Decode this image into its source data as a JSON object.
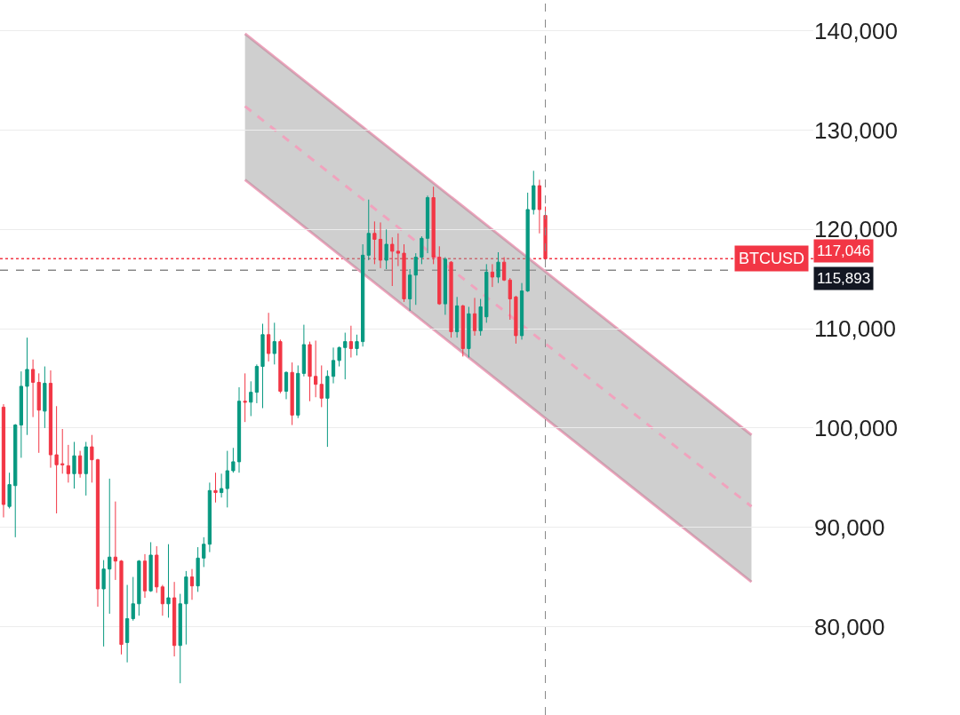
{
  "chart_data": {
    "type": "candlestick",
    "categories": [
      null,
      null,
      null,
      null,
      null,
      null,
      null,
      null,
      null,
      null,
      null,
      null,
      null,
      null,
      null,
      null,
      null,
      null,
      null,
      null,
      null,
      null,
      null,
      null,
      null,
      null,
      null,
      null,
      null,
      null,
      null,
      null,
      null,
      null,
      null,
      null,
      null,
      null,
      null,
      null,
      null,
      null,
      null,
      null,
      null,
      null,
      null,
      null,
      null,
      null,
      null,
      null,
      null,
      null,
      null,
      null,
      null,
      null,
      null,
      null,
      null,
      null,
      null,
      null,
      null,
      null,
      null,
      null,
      null,
      null,
      null,
      null,
      null,
      null,
      null,
      null,
      null,
      null,
      null,
      null,
      null,
      null,
      null,
      null,
      null,
      null,
      null,
      null,
      null,
      null,
      null,
      null,
      null,
      null,
      null,
      null,
      null,
      null,
      null,
      null,
      null,
      null,
      null,
      null,
      null,
      null,
      null,
      null,
      null,
      null,
      null,
      null,
      null,
      null,
      null,
      null,
      null,
      null,
      null,
      null,
      null,
      null,
      null,
      null,
      null,
      null,
      null,
      null
    ],
    "series": [
      {
        "ohlc": [
          [
            102100,
            102400,
            91000,
            92300
          ],
          [
            92100,
            95500,
            91900,
            94300
          ],
          [
            94200,
            100400,
            89000,
            100300
          ],
          [
            100300,
            105700,
            97000,
            104200
          ],
          [
            104200,
            109100,
            99300,
            105900
          ],
          [
            105900,
            106900,
            101100,
            104600
          ],
          [
            104600,
            105500,
            97500,
            101800
          ],
          [
            101700,
            106200,
            100000,
            104500
          ],
          [
            104500,
            105800,
            96000,
            97300
          ],
          [
            97300,
            102200,
            91400,
            96300
          ],
          [
            96400,
            99900,
            95400,
            96300
          ],
          [
            96200,
            98300,
            94500,
            95400
          ],
          [
            95400,
            98600,
            93900,
            97200
          ],
          [
            97200,
            97700,
            95000,
            95400
          ],
          [
            95400,
            98600,
            93200,
            98100
          ],
          [
            98100,
            99300,
            94500,
            96800
          ],
          [
            96800,
            96900,
            82000,
            83800
          ],
          [
            83800,
            86700,
            78000,
            85800
          ],
          [
            85800,
            94900,
            81300,
            87000
          ],
          [
            87000,
            92600,
            84700,
            86600
          ],
          [
            86600,
            86700,
            77200,
            78200
          ],
          [
            78400,
            84200,
            76400,
            80800
          ],
          [
            80800,
            85000,
            80600,
            82300
          ],
          [
            82300,
            86700,
            81100,
            86600
          ],
          [
            86600,
            87300,
            82900,
            83600
          ],
          [
            83600,
            88500,
            83500,
            87200
          ],
          [
            87200,
            88100,
            83400,
            84000
          ],
          [
            84000,
            84200,
            81100,
            82300
          ],
          [
            82300,
            88300,
            80900,
            82900
          ],
          [
            82900,
            84500,
            77000,
            78100
          ],
          [
            78100,
            83300,
            74300,
            82300
          ],
          [
            82300,
            85600,
            78200,
            85000
          ],
          [
            85000,
            85800,
            82700,
            84100
          ],
          [
            84100,
            88000,
            83500,
            86900
          ],
          [
            86900,
            89000,
            86000,
            88300
          ],
          [
            88300,
            94500,
            87500,
            93700
          ],
          [
            93700,
            95500,
            92500,
            93500
          ],
          [
            93500,
            95400,
            93000,
            93900
          ],
          [
            93900,
            97700,
            92000,
            95700
          ],
          [
            95700,
            98000,
            95500,
            96600
          ],
          [
            96600,
            104100,
            95500,
            102700
          ],
          [
            102700,
            105500,
            100600,
            102600
          ],
          [
            102600,
            104700,
            101200,
            103600
          ],
          [
            103600,
            106400,
            102500,
            106200
          ],
          [
            106200,
            110500,
            102000,
            109400
          ],
          [
            109400,
            111600,
            106700,
            107500
          ],
          [
            107500,
            110600,
            106400,
            108700
          ],
          [
            108700,
            108900,
            103500,
            103700
          ],
          [
            103700,
            105700,
            102900,
            105600
          ],
          [
            105600,
            106600,
            100300,
            101300
          ],
          [
            101300,
            106300,
            101000,
            105500
          ],
          [
            105500,
            110400,
            105200,
            108400
          ],
          [
            108400,
            108700,
            102700,
            105200
          ],
          [
            105200,
            108800,
            103100,
            104400
          ],
          [
            104400,
            106300,
            102100,
            103000
          ],
          [
            103000,
            105800,
            98100,
            105200
          ],
          [
            105200,
            108100,
            104500,
            106800
          ],
          [
            106800,
            108200,
            106200,
            108100
          ],
          [
            108100,
            109600,
            104900,
            108700
          ],
          [
            108700,
            110300,
            107100,
            108000
          ],
          [
            108000,
            109400,
            107300,
            108700
          ],
          [
            108700,
            118500,
            108200,
            117400
          ],
          [
            117400,
            123000,
            116900,
            119600
          ],
          [
            119600,
            120800,
            116500,
            119000
          ],
          [
            119000,
            120700,
            116100,
            116900
          ],
          [
            116900,
            120000,
            116000,
            118500
          ],
          [
            118500,
            119200,
            114300,
            117800
          ],
          [
            117800,
            119600,
            116300,
            117600
          ],
          [
            117600,
            118500,
            112700,
            113000
          ],
          [
            113000,
            116000,
            111800,
            115400
          ],
          [
            115400,
            117600,
            112400,
            117200
          ],
          [
            117200,
            119300,
            116500,
            119100
          ],
          [
            119100,
            123400,
            117600,
            123200
          ],
          [
            123200,
            124300,
            116500,
            117200
          ],
          [
            117200,
            118300,
            112400,
            112500
          ],
          [
            112500,
            117200,
            111400,
            117000
          ],
          [
            116700,
            116800,
            109100,
            109700
          ],
          [
            109700,
            113200,
            109100,
            112300
          ],
          [
            112300,
            112400,
            107200,
            108000
          ],
          [
            108000,
            112200,
            107100,
            111500
          ],
          [
            111500,
            113100,
            109300,
            109800
          ],
          [
            109800,
            113000,
            109300,
            112200
          ],
          [
            111200,
            116500,
            110600,
            115700
          ],
          [
            115700,
            116500,
            114200,
            115200
          ],
          [
            115200,
            117700,
            114600,
            116700
          ],
          [
            116700,
            117200,
            114800,
            114900
          ],
          [
            114900,
            115100,
            110900,
            113000
          ],
          [
            113200,
            113300,
            108500,
            109300
          ],
          [
            109300,
            114600,
            108900,
            113800
          ],
          [
            113800,
            123700,
            113700,
            122000
          ],
          [
            122000,
            125900,
            121500,
            124400
          ],
          [
            124400,
            125000,
            119600,
            122000
          ],
          [
            121400,
            122300,
            116900,
            117046
          ],
          null,
          null,
          null,
          null,
          null,
          null,
          null,
          null,
          null,
          null,
          null,
          null,
          null,
          null,
          null,
          null,
          null,
          null,
          null,
          null,
          null,
          null,
          null,
          null,
          null,
          null,
          null,
          null,
          null,
          null,
          null,
          null,
          null,
          null,
          null
        ],
        "colors": [
          "#f23645",
          "#089981",
          "#089981",
          "#089981",
          "#089981",
          "#f23645",
          "#f23645",
          "#089981",
          "#f23645",
          "#f23645",
          "#f23645",
          "#f23645",
          "#089981",
          "#f23645",
          "#089981",
          "#f23645",
          "#f23645",
          "#089981",
          "#089981",
          "#f23645",
          "#f23645",
          "#089981",
          "#089981",
          "#089981",
          "#f23645",
          "#089981",
          "#f23645",
          "#f23645",
          "#089981",
          "#f23645",
          "#089981",
          "#089981",
          "#f23645",
          "#089981",
          "#089981",
          "#089981",
          "#f23645",
          "#089981",
          "#089981",
          "#089981",
          "#089981",
          "#f23645",
          "#089981",
          "#089981",
          "#089981",
          "#f23645",
          "#089981",
          "#f23645",
          "#089981",
          "#f23645",
          "#089981",
          "#089981",
          "#f23645",
          "#f23645",
          "#f23645",
          "#089981",
          "#089981",
          "#089981",
          "#089981",
          "#f23645",
          "#089981",
          "#089981",
          "#089981",
          "#f23645",
          "#f23645",
          "#089981",
          "#f23645",
          "#f23645",
          "#f23645",
          "#089981",
          "#089981",
          "#089981",
          "#089981",
          "#f23645",
          "#f23645",
          "#089981",
          "#f23645",
          "#089981",
          "#f23645",
          "#089981",
          "#f23645",
          "#089981",
          "#089981",
          "#f23645",
          "#089981",
          "#f23645",
          "#f23645",
          "#f23645",
          "#089981",
          "#089981",
          "#089981",
          "#f23645",
          "#f23645",
          null,
          null,
          null,
          null,
          null,
          null,
          null,
          null,
          null,
          null,
          null,
          null,
          null,
          null,
          null,
          null,
          null,
          null,
          null,
          null,
          null,
          null,
          null,
          null,
          null,
          null,
          null,
          null,
          null,
          null,
          null,
          null,
          null,
          null,
          null
        ]
      },
      {
        "type": "line",
        "color": "#f0a3bd",
        "line_style": "solid",
        "values": [
          null,
          null,
          null,
          null,
          null,
          null,
          null,
          null,
          null,
          null,
          null,
          null,
          null,
          null,
          null,
          null,
          null,
          null,
          null,
          null,
          null,
          null,
          null,
          null,
          null,
          null,
          null,
          null,
          null,
          null,
          null,
          null,
          null,
          null,
          null,
          null,
          null,
          null,
          null,
          null,
          null,
          139700,
          null,
          null,
          null,
          null,
          null,
          null,
          null,
          null,
          null,
          null,
          null,
          null,
          null,
          null,
          null,
          null,
          null,
          null,
          null,
          null,
          null,
          null,
          null,
          null,
          null,
          null,
          null,
          null,
          null,
          null,
          null,
          null,
          null,
          null,
          null,
          null,
          null,
          null,
          null,
          null,
          null,
          null,
          null,
          null,
          null,
          null,
          null,
          null,
          null,
          null,
          null,
          null,
          null,
          null,
          null,
          null,
          null,
          null,
          null,
          null,
          null,
          null,
          null,
          null,
          null,
          null,
          null,
          null,
          null,
          null,
          null,
          null,
          null,
          null,
          null,
          null,
          null,
          null,
          null,
          null,
          null,
          null,
          null,
          null,
          null,
          99300
        ]
      },
      {
        "type": "line",
        "color": "#f0a3bd",
        "line_style": "solid",
        "values": [
          null,
          null,
          null,
          null,
          null,
          null,
          null,
          null,
          null,
          null,
          null,
          null,
          null,
          null,
          null,
          null,
          null,
          null,
          null,
          null,
          null,
          null,
          null,
          null,
          null,
          null,
          null,
          null,
          null,
          null,
          null,
          null,
          null,
          null,
          null,
          null,
          null,
          null,
          null,
          null,
          null,
          125000,
          null,
          null,
          null,
          null,
          null,
          null,
          null,
          null,
          null,
          null,
          null,
          null,
          null,
          null,
          null,
          null,
          null,
          null,
          null,
          null,
          null,
          null,
          null,
          null,
          null,
          null,
          null,
          null,
          null,
          null,
          null,
          null,
          null,
          null,
          null,
          null,
          null,
          null,
          null,
          null,
          null,
          null,
          null,
          null,
          null,
          null,
          null,
          null,
          null,
          null,
          null,
          null,
          null,
          null,
          null,
          null,
          null,
          null,
          null,
          null,
          null,
          null,
          null,
          null,
          null,
          null,
          null,
          null,
          null,
          null,
          null,
          null,
          null,
          null,
          null,
          null,
          null,
          null,
          null,
          null,
          null,
          null,
          null,
          null,
          null,
          84500
        ]
      },
      {
        "type": "line",
        "color": "#f0a3bd",
        "line_style": "dashed",
        "values": [
          null,
          null,
          null,
          null,
          null,
          null,
          null,
          null,
          null,
          null,
          null,
          null,
          null,
          null,
          null,
          null,
          null,
          null,
          null,
          null,
          null,
          null,
          null,
          null,
          null,
          null,
          null,
          null,
          null,
          null,
          null,
          null,
          null,
          null,
          null,
          null,
          null,
          null,
          null,
          null,
          null,
          132400,
          null,
          null,
          null,
          null,
          null,
          null,
          null,
          null,
          null,
          null,
          null,
          null,
          null,
          null,
          null,
          null,
          null,
          null,
          null,
          null,
          null,
          null,
          null,
          null,
          null,
          null,
          null,
          null,
          null,
          null,
          null,
          null,
          null,
          null,
          null,
          null,
          null,
          null,
          null,
          null,
          null,
          null,
          null,
          null,
          null,
          null,
          null,
          null,
          null,
          null,
          null,
          null,
          null,
          null,
          null,
          null,
          null,
          null,
          null,
          null,
          null,
          null,
          null,
          null,
          null,
          null,
          null,
          null,
          null,
          null,
          null,
          null,
          null,
          null,
          null,
          null,
          null,
          null,
          null,
          null,
          null,
          null,
          null,
          null,
          null,
          92100
        ],
        "lower": [
          null,
          null,
          null,
          null,
          null,
          null,
          null,
          null,
          null,
          null,
          null,
          null,
          null,
          null,
          null,
          null,
          null,
          null,
          null,
          null,
          null,
          null,
          null,
          null,
          null,
          null,
          null,
          null,
          null,
          null,
          null,
          null,
          null,
          null,
          null,
          null,
          null,
          null,
          null,
          null,
          null,
          125000,
          null,
          null,
          null,
          null,
          null,
          null,
          null,
          null,
          null,
          null,
          null,
          null,
          null,
          null,
          null,
          null,
          null,
          null,
          null,
          null,
          null,
          null,
          null,
          null,
          null,
          null,
          null,
          null,
          null,
          null,
          null,
          null,
          null,
          null,
          null,
          null,
          null,
          null,
          null,
          null,
          null,
          null,
          null,
          null,
          null,
          null,
          null,
          null,
          null,
          null,
          null,
          null,
          null,
          null,
          null,
          null,
          null,
          null,
          null,
          null,
          null,
          null,
          null,
          null,
          null,
          null,
          null,
          null,
          null,
          null,
          null,
          null,
          null,
          null,
          null,
          null,
          null,
          null,
          null,
          null,
          null,
          null,
          null,
          null,
          null,
          84500
        ],
        "upper": [
          null,
          null,
          null,
          null,
          null,
          null,
          null,
          null,
          null,
          null,
          null,
          null,
          null,
          null,
          null,
          null,
          null,
          null,
          null,
          null,
          null,
          null,
          null,
          null,
          null,
          null,
          null,
          null,
          null,
          null,
          null,
          null,
          null,
          null,
          null,
          null,
          null,
          null,
          null,
          null,
          null,
          139700,
          null,
          null,
          null,
          null,
          null,
          null,
          null,
          null,
          null,
          null,
          null,
          null,
          null,
          null,
          null,
          null,
          null,
          null,
          null,
          null,
          null,
          null,
          null,
          null,
          null,
          null,
          null,
          null,
          null,
          null,
          null,
          null,
          null,
          null,
          null,
          null,
          null,
          null,
          null,
          null,
          null,
          null,
          null,
          null,
          null,
          null,
          null,
          null,
          null,
          null,
          null,
          null,
          null,
          null,
          null,
          null,
          null,
          null,
          null,
          null,
          null,
          null,
          null,
          null,
          null,
          null,
          null,
          null,
          null,
          null,
          null,
          null,
          null,
          null,
          null,
          null,
          null,
          null,
          null,
          null,
          null,
          null,
          null,
          null,
          null,
          99300
        ]
      }
    ],
    "ylim": [
      71100,
      143100
    ],
    "yticks": [
      {
        "value": 80000,
        "label": "80,000"
      },
      {
        "value": 90000,
        "label": "90,000"
      },
      {
        "value": 100000,
        "label": "100,000"
      },
      {
        "value": 110000,
        "label": "110,000"
      },
      {
        "value": 120000,
        "label": "120,000"
      },
      {
        "value": 130000,
        "label": "130,000"
      },
      {
        "value": 140000,
        "label": "140,000"
      }
    ],
    "ref_lines": [
      {
        "axis": "y",
        "value": 117046,
        "label": "117,046",
        "color": "#f23645",
        "line_style": "dotted"
      },
      {
        "axis": "y",
        "value": 115893,
        "label": "115,893",
        "color": "#888888",
        "line_style": "dashed"
      }
    ],
    "annotations": [
      "BTCUSD"
    ],
    "grid": "y",
    "tick_labels": "y"
  }
}
